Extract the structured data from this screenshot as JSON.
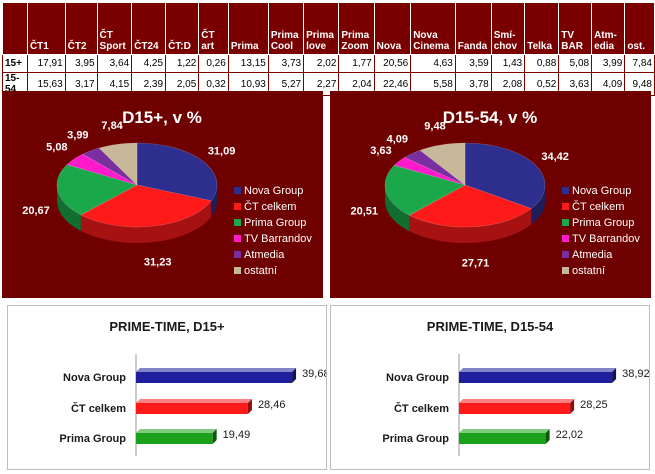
{
  "table": {
    "headers": [
      "",
      "ČT1",
      "ČT2",
      "ČT Sport",
      "ČT24",
      "ČT:D",
      "ČT art",
      "Prima",
      "Prima Cool",
      "Prima love",
      "Prima Zoom",
      "Nova",
      "Nova Cinema",
      "Fanda",
      "Smí-chov",
      "Telka",
      "TV BAR",
      "Atm-edia",
      "ost."
    ],
    "rows": [
      {
        "label": "15+",
        "values": [
          "17,91",
          "3,95",
          "3,64",
          "4,25",
          "1,22",
          "0,26",
          "13,15",
          "3,73",
          "2,02",
          "1,77",
          "20,56",
          "4,63",
          "3,59",
          "1,43",
          "0,88",
          "5,08",
          "3,99",
          "7,84"
        ]
      },
      {
        "label": "15-54",
        "values": [
          "15,63",
          "3,17",
          "4,15",
          "2,39",
          "2,05",
          "0,32",
          "10,93",
          "5,27",
          "2,27",
          "2,04",
          "22,46",
          "5,58",
          "3,78",
          "2,08",
          "0,52",
          "3,63",
          "4,09",
          "9,48"
        ]
      }
    ]
  },
  "chart_data": [
    {
      "type": "pie",
      "title": "D15+, v %",
      "labels": [
        "Nova Group",
        "ČT celkem",
        "Prima Group",
        "TV Barrandov",
        "Atmedia",
        "ostatní"
      ],
      "values": [
        31.09,
        31.23,
        20.67,
        5.08,
        3.99,
        7.84
      ],
      "value_labels": [
        "31,09",
        "31,23",
        "20,67",
        "5,08",
        "3,99",
        "7,84"
      ],
      "colors": [
        "#2e2e8f",
        "#ff1a1a",
        "#1aa84a",
        "#ff1acb",
        "#7a2fa0",
        "#c8b89a"
      ],
      "legend": "right"
    },
    {
      "type": "pie",
      "title": "D15-54, v %",
      "labels": [
        "Nova Group",
        "ČT celkem",
        "Prima Group",
        "TV Barrandov",
        "Atmedia",
        "ostatní"
      ],
      "values": [
        34.42,
        27.71,
        20.51,
        3.63,
        4.09,
        9.48
      ],
      "value_labels": [
        "34,42",
        "27,71",
        "20,51",
        "3,63",
        "4,09",
        "9,48"
      ],
      "colors": [
        "#2e2e8f",
        "#ff1a1a",
        "#1aa84a",
        "#ff1acb",
        "#7a2fa0",
        "#c8b89a"
      ],
      "legend": "right"
    },
    {
      "type": "bar",
      "orientation": "horizontal",
      "title": "PRIME-TIME, D15+",
      "categories": [
        "Nova Group",
        "ČT celkem",
        "Prima Group"
      ],
      "values": [
        39.68,
        28.46,
        19.49
      ],
      "value_labels": [
        "39,68",
        "28,46",
        "19,49"
      ],
      "colors": [
        "#1f1f9e",
        "#ff1a1a",
        "#1aa01a"
      ],
      "xlim": [
        0,
        45
      ]
    },
    {
      "type": "bar",
      "orientation": "horizontal",
      "title": "PRIME-TIME, D15-54",
      "categories": [
        "Nova Group",
        "ČT celkem",
        "Prima Group"
      ],
      "values": [
        38.92,
        28.25,
        22.02
      ],
      "value_labels": [
        "38,92",
        "28,25",
        "22,02"
      ],
      "colors": [
        "#1f1f9e",
        "#ff1a1a",
        "#1aa01a"
      ],
      "xlim": [
        0,
        45
      ]
    }
  ]
}
